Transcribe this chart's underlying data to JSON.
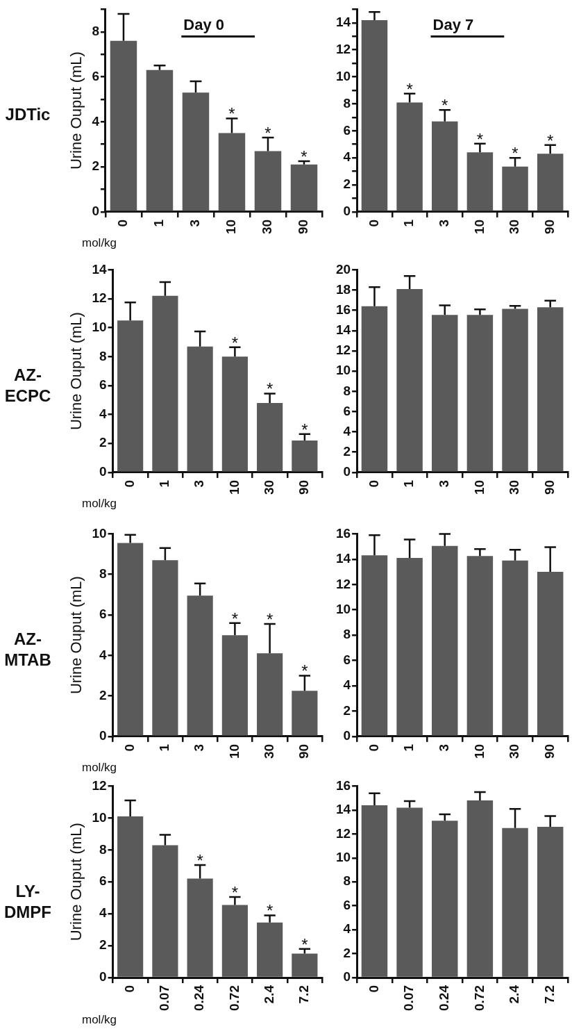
{
  "chart_data": [
    {
      "type": "bar",
      "title": "JDTic",
      "ylabel": "Urine Ouput (mL)",
      "xlabel": "mol/kg",
      "categories": [
        "0",
        "1",
        "3",
        "10",
        "30",
        "90"
      ],
      "color": "#5a5a5a",
      "values": [
        7.6,
        6.3,
        5.3,
        3.5,
        2.7,
        2.1
      ],
      "errors": [
        [
          7.6,
          8.8
        ],
        [
          6.3,
          6.5
        ],
        [
          5.3,
          5.8
        ],
        [
          3.5,
          4.15
        ],
        [
          2.7,
          3.3
        ],
        [
          2.1,
          2.25
        ]
      ],
      "ylim": [
        0,
        9
      ],
      "yticks": [
        0,
        {
          "value": 1,
          "label": null
        },
        2,
        {
          "value": 3,
          "label": null
        },
        4,
        {
          "value": 5,
          "label": null
        },
        6,
        {
          "value": 7,
          "label": null
        },
        8,
        {
          "value": 9,
          "label": null
        }
      ],
      "annotations": [
        "Day 0",
        {
          "text": "*",
          "x": "10",
          "y": 4.15
        },
        {
          "text": "*",
          "x": "30",
          "y": 3.3
        },
        {
          "text": "*",
          "x": "90",
          "y": 2.25
        }
      ]
    },
    {
      "type": "bar",
      "categories": [
        "0",
        "1",
        "3",
        "10",
        "30",
        "90"
      ],
      "color": "#5a5a5a",
      "values": [
        14.2,
        8.1,
        6.7,
        4.4,
        3.35,
        4.3
      ],
      "errors": [
        [
          14.2,
          14.8
        ],
        [
          8.1,
          8.75
        ],
        [
          6.7,
          7.55
        ],
        [
          4.4,
          5.05
        ],
        [
          3.35,
          4.0
        ],
        [
          4.3,
          4.95
        ]
      ],
      "ylim": [
        0,
        15
      ],
      "yticks": [
        0,
        {
          "value": 1,
          "label": null
        },
        2,
        {
          "value": 3,
          "label": null
        },
        4,
        {
          "value": 5,
          "label": null
        },
        6,
        {
          "value": 7,
          "label": null
        },
        8,
        {
          "value": 9,
          "label": null
        },
        10,
        {
          "value": 11,
          "label": null
        },
        12,
        {
          "value": 13,
          "label": null
        },
        14,
        {
          "value": 15,
          "label": null
        }
      ],
      "annotations": [
        "Day 7",
        {
          "text": "*",
          "x": "1",
          "y": 8.75
        },
        {
          "text": "*",
          "x": "3",
          "y": 7.55
        },
        {
          "text": "*",
          "x": "10",
          "y": 5.05
        },
        {
          "text": "*",
          "x": "30",
          "y": 4.0
        },
        {
          "text": "*",
          "x": "90",
          "y": 4.95
        }
      ]
    },
    {
      "type": "bar",
      "title": "AZ-ECPC",
      "ylabel": "Urine Ouput (mL)",
      "xlabel": "mol/kg",
      "categories": [
        "0",
        "1",
        "3",
        "10",
        "30",
        "90"
      ],
      "color": "#5a5a5a",
      "values": [
        10.5,
        12.2,
        8.7,
        8.0,
        4.8,
        2.2
      ],
      "errors": [
        [
          10.5,
          11.75
        ],
        [
          12.2,
          13.15
        ],
        [
          8.7,
          9.75
        ],
        [
          8.0,
          8.65
        ],
        [
          4.8,
          5.45
        ],
        [
          2.2,
          2.65
        ]
      ],
      "ylim": [
        0,
        14
      ],
      "yticks": [
        0,
        2,
        4,
        6,
        8,
        10,
        12,
        14
      ],
      "annotations": [
        {
          "text": "*",
          "x": "10",
          "y": 8.65
        },
        {
          "text": "*",
          "x": "30",
          "y": 5.45
        },
        {
          "text": "*",
          "x": "90",
          "y": 2.65
        }
      ]
    },
    {
      "type": "bar",
      "categories": [
        "0",
        "1",
        "3",
        "10",
        "30",
        "90"
      ],
      "color": "#5a5a5a",
      "values": [
        16.4,
        18.1,
        15.55,
        15.55,
        16.15,
        16.3
      ],
      "errors": [
        [
          16.4,
          18.3
        ],
        [
          18.1,
          19.4
        ],
        [
          15.55,
          16.5
        ],
        [
          15.55,
          16.1
        ],
        [
          16.15,
          16.45
        ],
        [
          16.3,
          16.95
        ]
      ],
      "ylim": [
        0,
        20
      ],
      "yticks": [
        0,
        2,
        4,
        6,
        8,
        10,
        12,
        14,
        16,
        18,
        20
      ]
    },
    {
      "type": "bar",
      "title": "AZ-MTAB",
      "ylabel": "Urine Ouput (mL)",
      "xlabel": "mol/kg",
      "categories": [
        "0",
        "1",
        "3",
        "10",
        "30",
        "90"
      ],
      "color": "#5a5a5a",
      "values": [
        9.55,
        8.7,
        6.95,
        5.0,
        4.1,
        2.25
      ],
      "errors": [
        [
          9.55,
          9.95
        ],
        [
          8.7,
          9.3
        ],
        [
          6.95,
          7.55
        ],
        [
          5.0,
          5.6
        ],
        [
          4.1,
          5.55
        ],
        [
          2.25,
          3.0
        ]
      ],
      "ylim": [
        0,
        10
      ],
      "yticks": [
        0,
        2,
        4,
        6,
        8,
        10
      ],
      "annotations": [
        {
          "text": "*",
          "x": "10",
          "y": 5.6
        },
        {
          "text": "*",
          "x": "30",
          "y": 5.55
        },
        {
          "text": "*",
          "x": "90",
          "y": 3.0
        }
      ]
    },
    {
      "type": "bar",
      "categories": [
        "0",
        "1",
        "3",
        "10",
        "30",
        "90"
      ],
      "color": "#5a5a5a",
      "values": [
        14.3,
        14.1,
        15.05,
        14.25,
        13.9,
        13.0
      ],
      "errors": [
        [
          14.3,
          15.9
        ],
        [
          14.1,
          15.55
        ],
        [
          15.05,
          16.0
        ],
        [
          14.25,
          14.8
        ],
        [
          13.9,
          14.75
        ],
        [
          13.0,
          14.95
        ]
      ],
      "ylim": [
        0,
        16
      ],
      "yticks": [
        0,
        2,
        4,
        6,
        8,
        10,
        12,
        14,
        16
      ]
    },
    {
      "type": "bar",
      "title": "LY-DMPF",
      "ylabel": "Urine Ouput (mL)",
      "xlabel": "mol/kg",
      "categories": [
        "0",
        "0.07",
        "0.24",
        "0.72",
        "2.4",
        "7.2"
      ],
      "color": "#5a5a5a",
      "values": [
        10.1,
        8.3,
        6.2,
        4.55,
        3.45,
        1.5
      ],
      "errors": [
        [
          10.1,
          11.1
        ],
        [
          8.3,
          8.95
        ],
        [
          6.2,
          7.05
        ],
        [
          4.55,
          5.05
        ],
        [
          3.45,
          3.9
        ],
        [
          1.5,
          1.8
        ]
      ],
      "ylim": [
        0,
        12
      ],
      "yticks": [
        0,
        2,
        4,
        6,
        8,
        10,
        12
      ],
      "annotations": [
        {
          "text": "*",
          "x": "0.24",
          "y": 7.05
        },
        {
          "text": "*",
          "x": "0.72",
          "y": 5.05
        },
        {
          "text": "*",
          "x": "2.4",
          "y": 3.9
        },
        {
          "text": "*",
          "x": "7.2",
          "y": 1.8
        }
      ]
    },
    {
      "type": "bar",
      "categories": [
        "0",
        "0.07",
        "0.24",
        "0.72",
        "2.4",
        "7.2"
      ],
      "color": "#5a5a5a",
      "values": [
        14.4,
        14.2,
        13.1,
        14.8,
        12.5,
        12.6
      ],
      "errors": [
        [
          14.4,
          15.4
        ],
        [
          14.2,
          14.75
        ],
        [
          13.1,
          13.65
        ],
        [
          14.8,
          15.5
        ],
        [
          12.5,
          14.1
        ],
        [
          12.6,
          13.5
        ]
      ],
      "ylim": [
        0,
        16
      ],
      "yticks": [
        0,
        2,
        4,
        6,
        8,
        10,
        12,
        14,
        16
      ]
    }
  ]
}
